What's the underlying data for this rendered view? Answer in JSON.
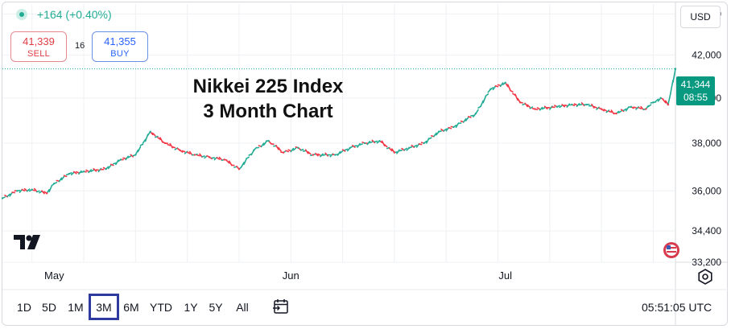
{
  "header": {
    "change_text": "+164 (+0.40%)",
    "sell": {
      "price": "41,339",
      "label": "SELL"
    },
    "buy": {
      "price": "41,355",
      "label": "BUY"
    },
    "spread": "16"
  },
  "currency": "USD",
  "last_price": {
    "value": "41,344",
    "countdown": "08:55"
  },
  "timeframes": [
    "1D",
    "5D",
    "1M",
    "3M",
    "6M",
    "YTD",
    "1Y",
    "5Y",
    "All"
  ],
  "active_timeframe": "3M",
  "clock": "05:51:05 UTC",
  "icons": [
    "status-dot-icon",
    "tradingview-logo-icon",
    "flag-icon",
    "settings-gear-icon",
    "calendar-compare-icon"
  ],
  "colors": {
    "up": "#22ab94",
    "down": "#f23645",
    "accent": "#2f3aa0",
    "grid": "#eef0f3"
  },
  "chart_data": {
    "type": "line",
    "title": "Nikkei 225 Index\n3 Month Chart",
    "title_lines": [
      "Nikkei 225 Index",
      "3 Month Chart"
    ],
    "xlabel": "",
    "ylabel": "",
    "y_scale": "log",
    "y_ticks": [
      33200,
      34400,
      36000,
      38000,
      40000,
      42000,
      44000
    ],
    "y_tick_labels": [
      "33,200",
      "34,400",
      "36,000",
      "38,000",
      "40,000",
      "42,000",
      "44,000"
    ],
    "ylim": [
      33200,
      44500
    ],
    "x_tick_labels": [
      "May",
      "Jun",
      "Jul"
    ],
    "x_tick_dates": [
      "2025-05-01",
      "2025-06-02",
      "2025-07-01"
    ],
    "xlim": [
      "2025-04-24",
      "2025-07-24"
    ],
    "grid": true,
    "series": [
      {
        "x": [
          "2025-04-24",
          "2025-04-26",
          "2025-04-28",
          "2025-04-30",
          "2025-05-01",
          "2025-05-03",
          "2025-05-05",
          "2025-05-08",
          "2025-05-10",
          "2025-05-12",
          "2025-05-14",
          "2025-05-16",
          "2025-05-18",
          "2025-05-20",
          "2025-05-22",
          "2025-05-24",
          "2025-05-26",
          "2025-05-28",
          "2025-05-30",
          "2025-06-01",
          "2025-06-03",
          "2025-06-05",
          "2025-06-08",
          "2025-06-10",
          "2025-06-12",
          "2025-06-14",
          "2025-06-16",
          "2025-06-18",
          "2025-06-20",
          "2025-06-22",
          "2025-06-24",
          "2025-06-27",
          "2025-06-29",
          "2025-07-01",
          "2025-07-03",
          "2025-07-05",
          "2025-07-08",
          "2025-07-10",
          "2025-07-12",
          "2025-07-14",
          "2025-07-16",
          "2025-07-18",
          "2025-07-20",
          "2025-07-21",
          "2025-07-22",
          "2025-07-23",
          "2025-07-24"
        ],
        "values": [
          35700,
          36000,
          36050,
          35900,
          36300,
          36700,
          36800,
          36900,
          37300,
          37500,
          38500,
          38000,
          37700,
          37500,
          37400,
          37300,
          36900,
          37700,
          38100,
          37600,
          37800,
          37500,
          37500,
          37800,
          38000,
          38100,
          37600,
          37800,
          38000,
          38500,
          38700,
          39300,
          40400,
          40700,
          39800,
          39500,
          39600,
          39700,
          39700,
          39500,
          39300,
          39600,
          39500,
          39800,
          40000,
          39700,
          41344
        ]
      }
    ]
  }
}
